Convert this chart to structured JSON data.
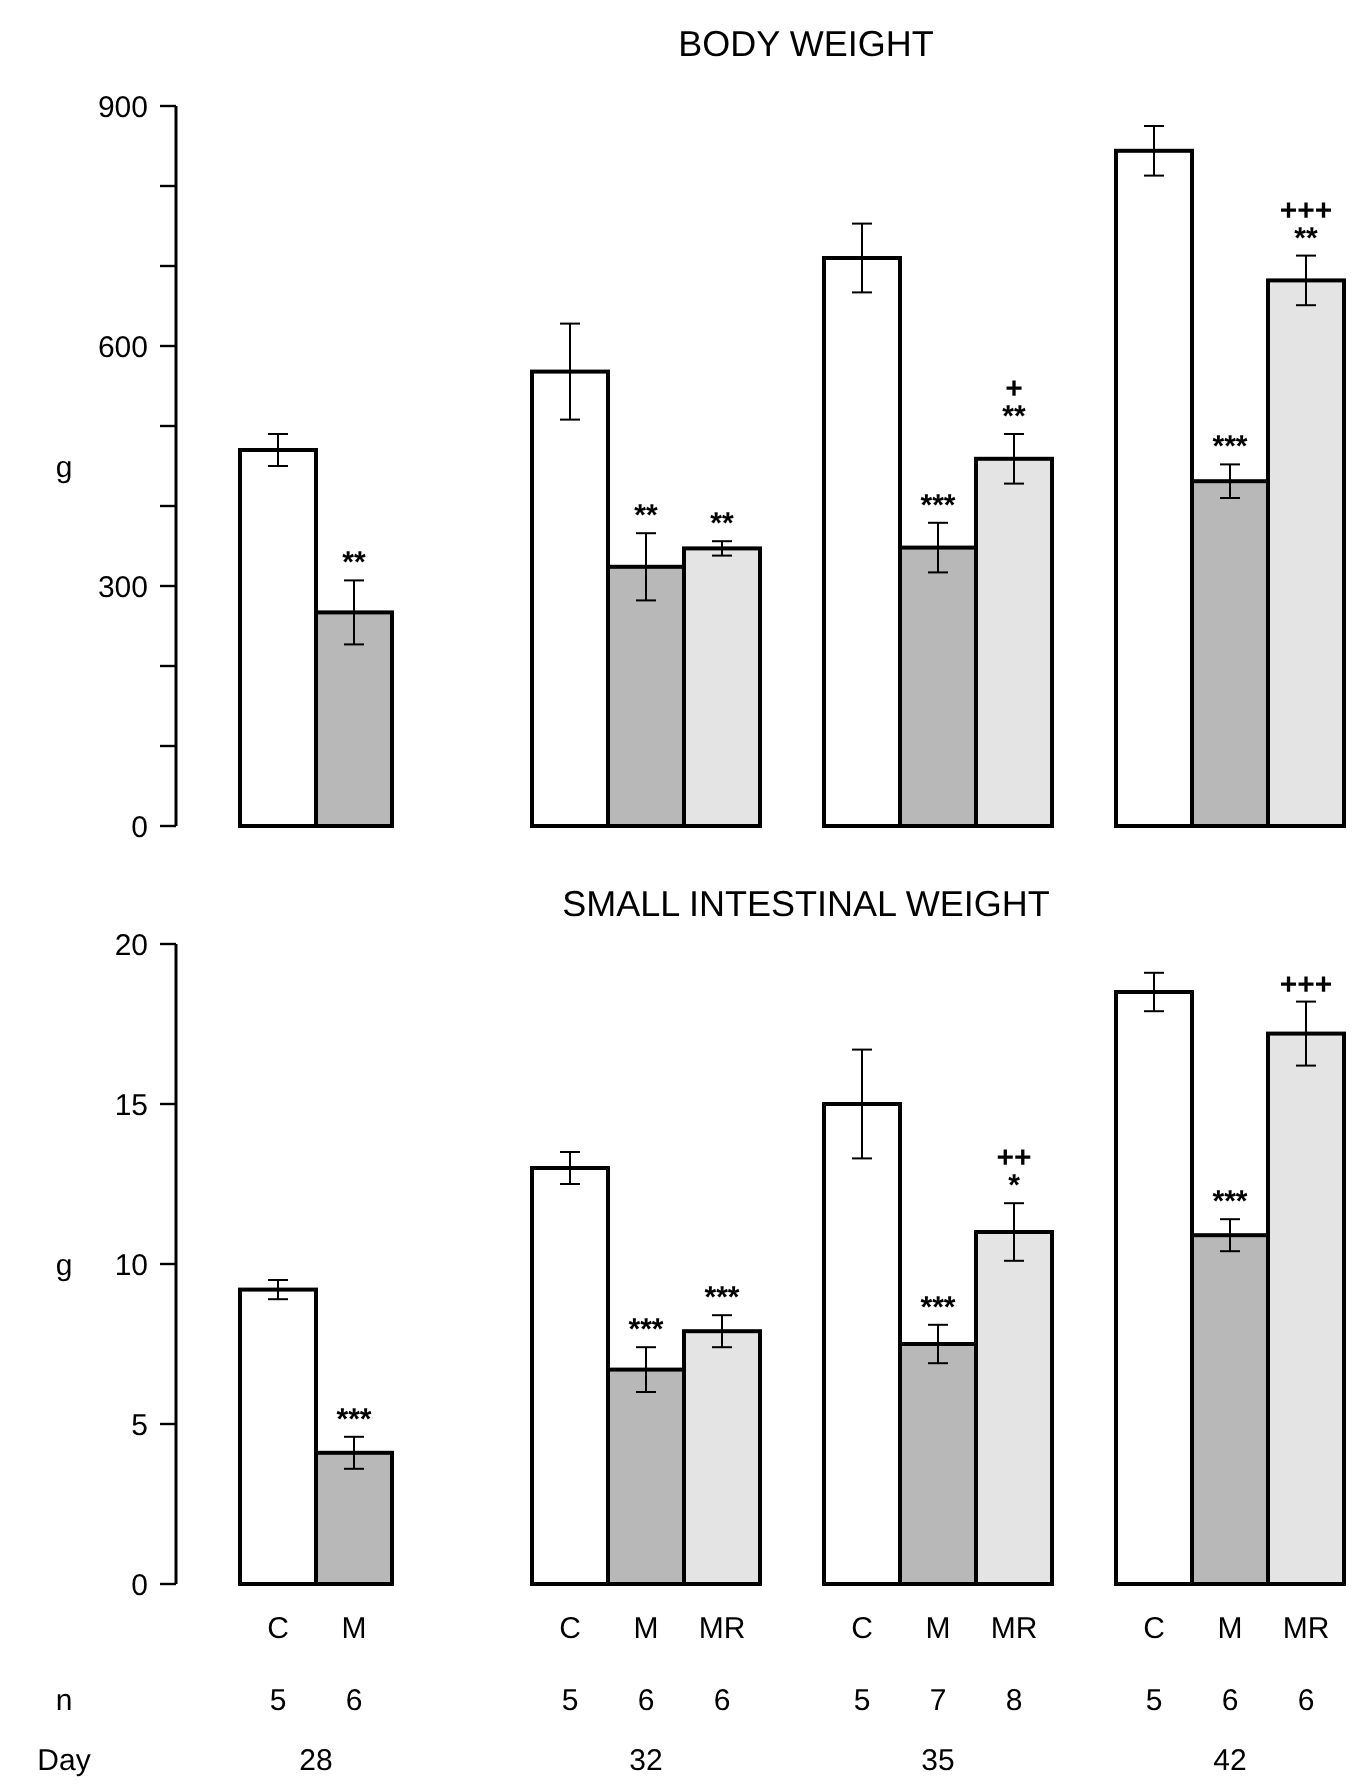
{
  "chart_data": [
    {
      "type": "bar",
      "title": "BODY WEIGHT",
      "ylabel": "g",
      "categories": [
        "28",
        "32",
        "35",
        "42"
      ],
      "series": [
        {
          "color": "#ffffff",
          "values": [
            470,
            568,
            710,
            844
          ],
          "errors": [
            20,
            60,
            43,
            31
          ]
        },
        {
          "color": "#b8b8b8",
          "values": [
            267,
            324,
            348,
            431
          ],
          "errors": [
            40,
            42,
            31,
            21
          ],
          "value_labels": [
            "**",
            "**",
            "***",
            "***"
          ]
        },
        {
          "color": "#e4e4e4",
          "values": [
            null,
            347,
            459,
            682
          ],
          "errors": [
            null,
            9,
            31,
            31
          ],
          "value_labels": [
            null,
            "**",
            "+\n**",
            "+++\n**"
          ]
        }
      ],
      "ylim": [
        0,
        900
      ],
      "yticks": [
        0,
        {
          "value": 100,
          "label": null
        },
        {
          "value": 200,
          "label": null
        },
        300,
        {
          "value": 400,
          "label": null
        },
        {
          "value": 500,
          "label": null
        },
        600,
        {
          "value": 700,
          "label": null
        },
        {
          "value": 800,
          "label": null
        },
        900
      ],
      "tick_labels": "y"
    },
    {
      "type": "bar",
      "title": "SMALL INTESTINAL WEIGHT",
      "ylabel": "g",
      "xlabel": "Day",
      "categories": [
        "28",
        "32",
        "35",
        "42"
      ],
      "series": [
        {
          "name": "C",
          "color": "#ffffff",
          "values": [
            9.2,
            13.0,
            15.0,
            18.5
          ],
          "errors": [
            0.3,
            0.5,
            1.7,
            0.6
          ]
        },
        {
          "name": "M",
          "color": "#b8b8b8",
          "values": [
            4.1,
            6.7,
            7.5,
            10.9
          ],
          "errors": [
            0.5,
            0.7,
            0.6,
            0.5
          ],
          "value_labels": [
            "***",
            "***",
            "***",
            "***"
          ]
        },
        {
          "name": "MR",
          "color": "#e4e4e4",
          "values": [
            null,
            7.9,
            11.0,
            17.2
          ],
          "errors": [
            null,
            0.5,
            0.9,
            1.0
          ],
          "value_labels": [
            null,
            "***",
            "++\n*",
            "+++"
          ]
        }
      ],
      "ylim": [
        0,
        20
      ],
      "yticks": [
        0,
        5,
        10,
        15,
        20
      ],
      "annotations": [
        "n",
        "5",
        "6",
        "5",
        "6",
        "6",
        "5",
        "7",
        "8",
        "5",
        "6",
        "6"
      ]
    }
  ]
}
